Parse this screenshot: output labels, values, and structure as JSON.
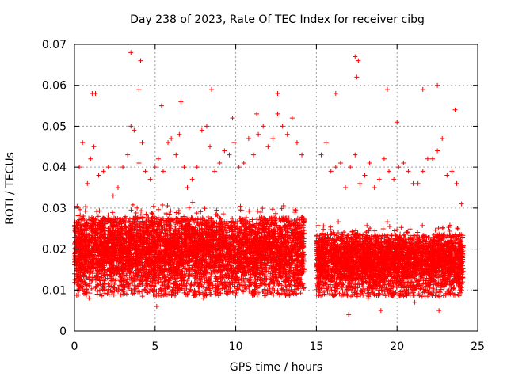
{
  "chart_data": {
    "type": "scatter",
    "title": "Day 238 of 2023, Rate Of TEC Index for receiver cibg",
    "xlabel": "GPS time / hours",
    "ylabel": "ROTI / TECUs",
    "xlim": [
      0,
      25
    ],
    "ylim": [
      0,
      0.07
    ],
    "x_ticks": [
      "0",
      "5",
      "10",
      "15",
      "20",
      "25"
    ],
    "y_ticks": [
      "0",
      "0.01",
      "0.02",
      "0.03",
      "0.04",
      "0.05",
      "0.06",
      "0.07"
    ],
    "grid": true,
    "marker": "+",
    "color": "#ff0000",
    "series": [
      {
        "x": [
          0.3,
          0.5,
          0.8,
          1.0,
          1.2,
          1.5,
          1.8,
          2.1,
          2.4,
          2.7,
          3.0,
          3.3,
          3.5,
          3.7,
          4.0,
          4.2,
          4.4,
          4.7,
          5.0,
          5.2,
          5.5,
          5.8,
          6.0,
          6.3,
          6.5,
          6.8,
          7.0,
          7.3,
          7.6,
          7.9,
          8.2,
          8.4,
          8.7,
          9.0,
          9.3,
          9.6,
          9.9,
          10.2,
          10.5,
          10.8,
          11.1,
          11.4,
          11.7,
          12.0,
          12.3,
          12.6,
          12.9,
          13.2,
          13.5,
          13.8,
          14.1,
          15.3,
          15.6,
          15.9,
          16.2,
          16.5,
          16.8,
          17.1,
          17.4,
          17.7,
          18.0,
          18.3,
          18.6,
          18.9,
          19.2,
          19.5,
          19.8,
          20.1,
          20.4,
          20.7,
          21.0,
          21.3,
          21.6,
          21.9,
          22.2,
          22.5,
          22.8,
          23.1,
          23.4,
          23.7,
          24.0,
          3.5,
          4.1,
          1.1,
          1.3,
          4.0,
          5.4,
          8.5,
          12.6,
          17.4,
          17.6,
          17.5,
          19.4,
          22.5,
          21.6,
          23.6,
          6.6,
          9.8,
          11.3,
          16.2,
          20.0,
          0.1,
          0.6,
          1.4,
          2.2,
          2.9,
          4.6,
          5.1,
          6.1,
          7.2,
          8.0,
          9.1,
          10.4,
          11.5,
          12.2,
          13.1,
          13.9,
          15.5,
          16.1,
          17.0,
          18.2,
          19.0,
          20.3,
          21.1,
          21.8,
          22.6,
          23.3,
          24.0,
          0.9,
          7.7,
          14.0
        ],
        "y": [
          0.04,
          0.046,
          0.036,
          0.042,
          0.045,
          0.038,
          0.039,
          0.04,
          0.033,
          0.035,
          0.04,
          0.043,
          0.05,
          0.049,
          0.041,
          0.046,
          0.039,
          0.037,
          0.04,
          0.042,
          0.039,
          0.046,
          0.047,
          0.043,
          0.048,
          0.04,
          0.035,
          0.037,
          0.04,
          0.049,
          0.05,
          0.045,
          0.039,
          0.041,
          0.044,
          0.043,
          0.046,
          0.04,
          0.041,
          0.047,
          0.043,
          0.048,
          0.05,
          0.045,
          0.047,
          0.053,
          0.05,
          0.048,
          0.052,
          0.046,
          0.043,
          0.043,
          0.046,
          0.039,
          0.04,
          0.041,
          0.035,
          0.04,
          0.043,
          0.036,
          0.038,
          0.041,
          0.035,
          0.037,
          0.042,
          0.039,
          0.037,
          0.04,
          0.041,
          0.039,
          0.036,
          0.036,
          0.039,
          0.042,
          0.042,
          0.044,
          0.047,
          0.038,
          0.039,
          0.036,
          0.031,
          0.068,
          0.066,
          0.058,
          0.058,
          0.059,
          0.055,
          0.059,
          0.058,
          0.067,
          0.066,
          0.062,
          0.059,
          0.06,
          0.059,
          0.054,
          0.056,
          0.052,
          0.053,
          0.058,
          0.051,
          0.018,
          0.012,
          0.009,
          0.011,
          0.012,
          0.014,
          0.006,
          0.013,
          0.01,
          0.008,
          0.012,
          0.01,
          0.014,
          0.012,
          0.011,
          0.013,
          0.009,
          0.011,
          0.004,
          0.008,
          0.005,
          0.009,
          0.007,
          0.01,
          0.005,
          0.009,
          0.01,
          0.008,
          0.011,
          0.012
        ]
      }
    ],
    "dense_bands": [
      {
        "x": [
          0,
          14.25
        ],
        "low": 0.008,
        "high": 0.032
      },
      {
        "x": [
          15.0,
          24.1
        ],
        "low": 0.008,
        "high": 0.027
      }
    ]
  }
}
